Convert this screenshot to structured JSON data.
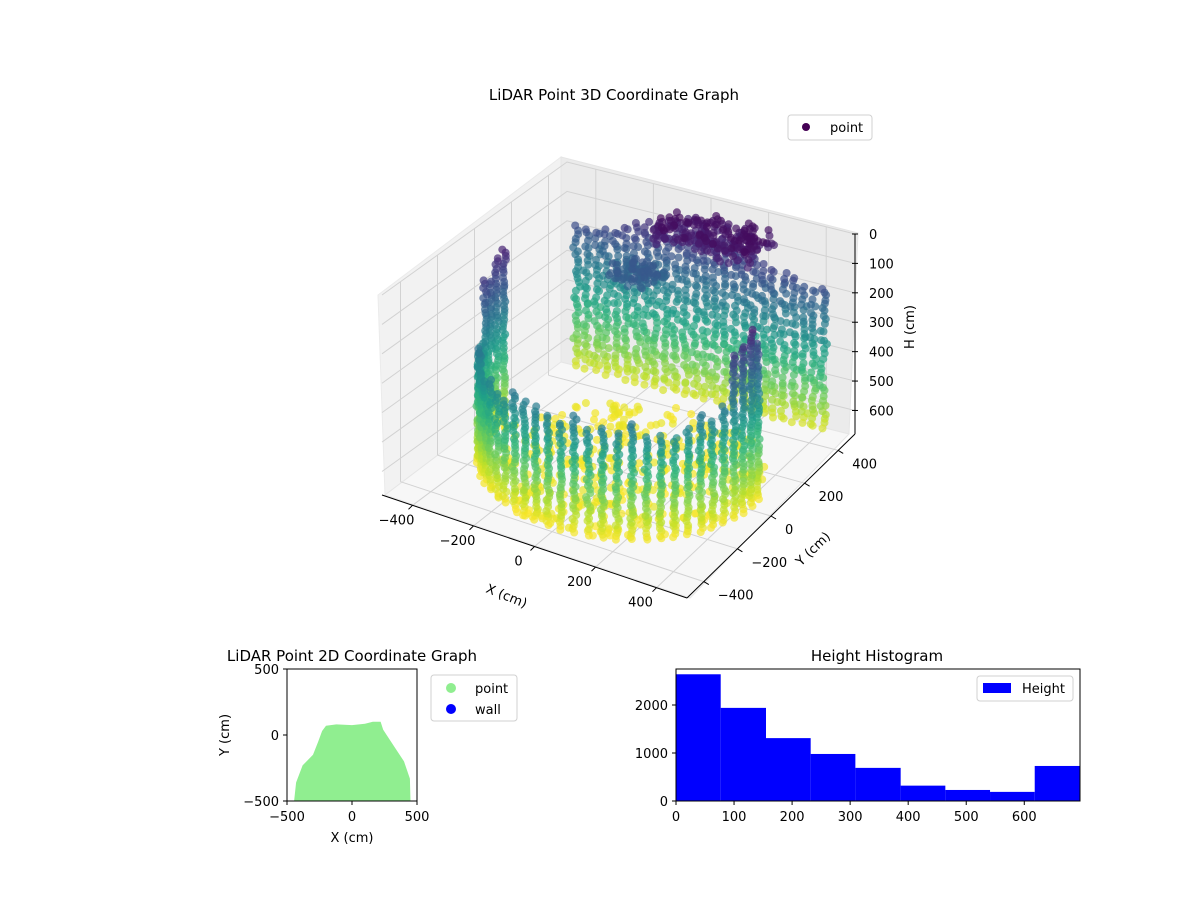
{
  "chart_data": [
    {
      "type": "scatter",
      "title": "LiDAR Point 3D Coordinate Graph",
      "xlabel": "X (cm)",
      "ylabel": "Y (cm)",
      "zlabel": "H (cm)",
      "x_ticks": [
        "−400",
        "−200",
        "0",
        "200",
        "400"
      ],
      "y_ticks": [
        "−400",
        "−200",
        "0",
        "200",
        "400"
      ],
      "z_ticks": [
        "0",
        "100",
        "200",
        "300",
        "400",
        "500",
        "600"
      ],
      "xlim": [
        -500,
        500
      ],
      "ylim": [
        -500,
        500
      ],
      "zlim": [
        0,
        680
      ],
      "z_axis_inverted": true,
      "colormap": "viridis",
      "legend": {
        "entries": [
          {
            "name": "point",
            "color": "#440154"
          }
        ],
        "placement": "top-right"
      },
      "grid": true
    },
    {
      "type": "scatter",
      "title": "LiDAR Point 2D Coordinate Graph",
      "xlabel": "X (cm)",
      "ylabel": "Y (cm)",
      "x_ticks": [
        "−500",
        "0",
        "500"
      ],
      "y_ticks": [
        "500",
        "0",
        "−500"
      ],
      "xlim": [
        -500,
        500
      ],
      "ylim": [
        -500,
        500
      ],
      "series": [
        {
          "name": "point",
          "color": "#90ee90"
        },
        {
          "name": "wall",
          "color": "#0000ff"
        }
      ],
      "legend_placement": "outside-right"
    },
    {
      "type": "bar",
      "title": "Height Histogram",
      "x_ticks": [
        "0",
        "100",
        "200",
        "300",
        "400",
        "500",
        "600"
      ],
      "y_ticks": [
        "0",
        "1000",
        "2000"
      ],
      "xlim": [
        0,
        696
      ],
      "ylim": [
        0,
        2750
      ],
      "bin_edges": [
        0,
        77,
        155,
        232,
        309,
        387,
        464,
        541,
        618,
        696
      ],
      "values": [
        2640,
        1940,
        1310,
        980,
        690,
        320,
        230,
        190,
        730
      ],
      "series": [
        {
          "name": "Height",
          "color": "#0000ff"
        }
      ],
      "legend_placement": "top-right"
    }
  ]
}
